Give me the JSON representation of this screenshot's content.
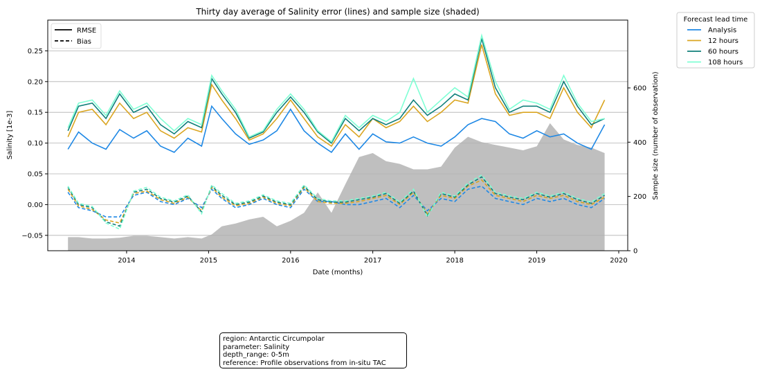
{
  "chart_data": {
    "type": "line",
    "title": "Thirty day average of Salinity error (lines) and sample size (shaded)",
    "xlabel": "Date (months)",
    "ylabel": "Salinity [1e-3]",
    "y2label": "Sample size (number of observation)",
    "xlim": [
      "2013-01-15",
      "2020-02-10"
    ],
    "ylim": [
      -0.075,
      0.3
    ],
    "y2lim": [
      0,
      850
    ],
    "grid": "horizontal",
    "x_ticks": [
      "2014",
      "2015",
      "2016",
      "2017",
      "2018",
      "2019",
      "2020"
    ],
    "y_ticks": [
      "−0.05",
      "0.00",
      "0.05",
      "0.10",
      "0.15",
      "0.20",
      "0.25"
    ],
    "y2_ticks": [
      "0",
      "200",
      "400",
      "600"
    ],
    "metric_legend": {
      "items": [
        {
          "label": "RMSE",
          "style": "solid"
        },
        {
          "label": "Bias",
          "style": "dashed"
        }
      ],
      "placement": "top-left"
    },
    "lead_legend": {
      "title": "Forecast lead time",
      "placement": "outside-right"
    },
    "x": [
      "2013-04-15",
      "2013-06-01",
      "2013-08-01",
      "2013-10-01",
      "2013-12-01",
      "2014-02-01",
      "2014-04-01",
      "2014-06-01",
      "2014-08-01",
      "2014-10-01",
      "2014-12-01",
      "2015-01-15",
      "2015-03-01",
      "2015-05-01",
      "2015-07-01",
      "2015-09-01",
      "2015-11-01",
      "2016-01-01",
      "2016-03-01",
      "2016-05-01",
      "2016-07-01",
      "2016-09-01",
      "2016-11-01",
      "2017-01-01",
      "2017-03-01",
      "2017-05-01",
      "2017-07-01",
      "2017-09-01",
      "2017-11-01",
      "2018-01-01",
      "2018-03-01",
      "2018-05-01",
      "2018-07-01",
      "2018-09-01",
      "2018-11-01",
      "2019-01-01",
      "2019-03-01",
      "2019-05-01",
      "2019-07-01",
      "2019-09-01",
      "2019-10-30"
    ],
    "sample_size": [
      50,
      50,
      45,
      45,
      48,
      55,
      55,
      50,
      45,
      50,
      45,
      60,
      90,
      100,
      115,
      125,
      90,
      110,
      140,
      215,
      140,
      245,
      345,
      360,
      330,
      320,
      300,
      300,
      310,
      380,
      420,
      400,
      390,
      380,
      370,
      385,
      470,
      410,
      390,
      380,
      360
    ],
    "series": [
      {
        "name": "Analysis",
        "color": "#1e88e5",
        "rmse": [
          0.09,
          0.118,
          0.1,
          0.09,
          0.122,
          0.108,
          0.12,
          0.095,
          0.085,
          0.108,
          0.095,
          0.16,
          0.14,
          0.115,
          0.098,
          0.105,
          0.12,
          0.155,
          0.12,
          0.1,
          0.085,
          0.115,
          0.09,
          0.115,
          0.102,
          0.1,
          0.11,
          0.1,
          0.095,
          0.11,
          0.13,
          0.14,
          0.135,
          0.115,
          0.108,
          0.12,
          0.11,
          0.115,
          0.1,
          0.09,
          0.13
        ],
        "bias": [
          0.02,
          -0.005,
          -0.01,
          -0.02,
          -0.02,
          0.015,
          0.02,
          0.005,
          0.0,
          0.01,
          -0.005,
          0.025,
          0.01,
          -0.005,
          0.0,
          0.01,
          0.0,
          -0.005,
          0.025,
          0.005,
          0.005,
          0.0,
          0.0,
          0.005,
          0.01,
          -0.005,
          0.015,
          -0.01,
          0.01,
          0.005,
          0.025,
          0.03,
          0.01,
          0.005,
          0.0,
          0.01,
          0.005,
          0.01,
          0.0,
          -0.005,
          0.01
        ]
      },
      {
        "name": "12 hours",
        "color": "#daa520",
        "rmse": [
          0.11,
          0.15,
          0.155,
          0.13,
          0.165,
          0.14,
          0.15,
          0.12,
          0.108,
          0.125,
          0.118,
          0.195,
          0.17,
          0.14,
          0.105,
          0.115,
          0.14,
          0.17,
          0.14,
          0.11,
          0.095,
          0.13,
          0.11,
          0.14,
          0.125,
          0.135,
          0.16,
          0.135,
          0.15,
          0.17,
          0.165,
          0.26,
          0.18,
          0.145,
          0.15,
          0.15,
          0.14,
          0.19,
          0.15,
          0.125,
          0.17
        ],
        "bias": [
          0.025,
          -0.002,
          -0.008,
          -0.025,
          -0.03,
          0.018,
          0.022,
          0.008,
          0.002,
          0.012,
          -0.01,
          0.028,
          0.012,
          -0.002,
          0.002,
          0.012,
          0.002,
          -0.002,
          0.028,
          0.005,
          0.002,
          0.002,
          0.005,
          0.01,
          0.015,
          0.0,
          0.02,
          -0.015,
          0.015,
          0.01,
          0.03,
          0.04,
          0.015,
          0.01,
          0.005,
          0.015,
          0.01,
          0.015,
          0.005,
          0.0,
          0.012
        ]
      },
      {
        "name": "60 hours",
        "color": "#0f7f7a",
        "rmse": [
          0.12,
          0.16,
          0.165,
          0.14,
          0.18,
          0.15,
          0.16,
          0.13,
          0.115,
          0.135,
          0.125,
          0.205,
          0.18,
          0.15,
          0.108,
          0.118,
          0.15,
          0.175,
          0.15,
          0.118,
          0.1,
          0.14,
          0.12,
          0.14,
          0.13,
          0.14,
          0.17,
          0.145,
          0.16,
          0.18,
          0.17,
          0.27,
          0.19,
          0.15,
          0.16,
          0.16,
          0.15,
          0.2,
          0.16,
          0.13,
          0.14
        ],
        "bias": [
          0.028,
          0.0,
          -0.005,
          -0.028,
          -0.035,
          0.02,
          0.025,
          0.01,
          0.004,
          0.014,
          -0.012,
          0.03,
          0.015,
          0.0,
          0.004,
          0.014,
          0.004,
          0.0,
          0.03,
          0.008,
          0.004,
          0.004,
          0.008,
          0.012,
          0.018,
          0.002,
          0.022,
          -0.018,
          0.018,
          0.012,
          0.032,
          0.045,
          0.018,
          0.012,
          0.008,
          0.018,
          0.012,
          0.018,
          0.008,
          0.002,
          0.015
        ]
      },
      {
        "name": "108 hours",
        "color": "#7fffd4",
        "rmse": [
          0.125,
          0.165,
          0.17,
          0.145,
          0.185,
          0.155,
          0.165,
          0.14,
          0.12,
          0.14,
          0.13,
          0.21,
          0.185,
          0.155,
          0.11,
          0.12,
          0.155,
          0.18,
          0.155,
          0.12,
          0.102,
          0.145,
          0.125,
          0.145,
          0.135,
          0.15,
          0.205,
          0.15,
          0.17,
          0.19,
          0.175,
          0.275,
          0.2,
          0.155,
          0.17,
          0.165,
          0.155,
          0.21,
          0.165,
          0.135,
          0.14
        ],
        "bias": [
          0.03,
          0.002,
          -0.003,
          -0.03,
          -0.04,
          0.022,
          0.028,
          0.012,
          0.006,
          0.016,
          -0.015,
          0.032,
          0.018,
          0.002,
          0.006,
          0.016,
          0.006,
          0.002,
          0.032,
          0.01,
          0.006,
          0.006,
          0.01,
          0.014,
          0.02,
          0.004,
          0.025,
          -0.02,
          0.02,
          0.014,
          0.035,
          0.048,
          0.02,
          0.014,
          0.01,
          0.02,
          0.014,
          0.02,
          0.01,
          0.004,
          0.018
        ]
      }
    ]
  },
  "info_box": {
    "region": "region: Antarctic Circumpolar",
    "parameter": "parameter: Salinity",
    "depth_range": "depth_range: 0-5m",
    "reference": "reference: Profile observations from in-situ TAC"
  }
}
